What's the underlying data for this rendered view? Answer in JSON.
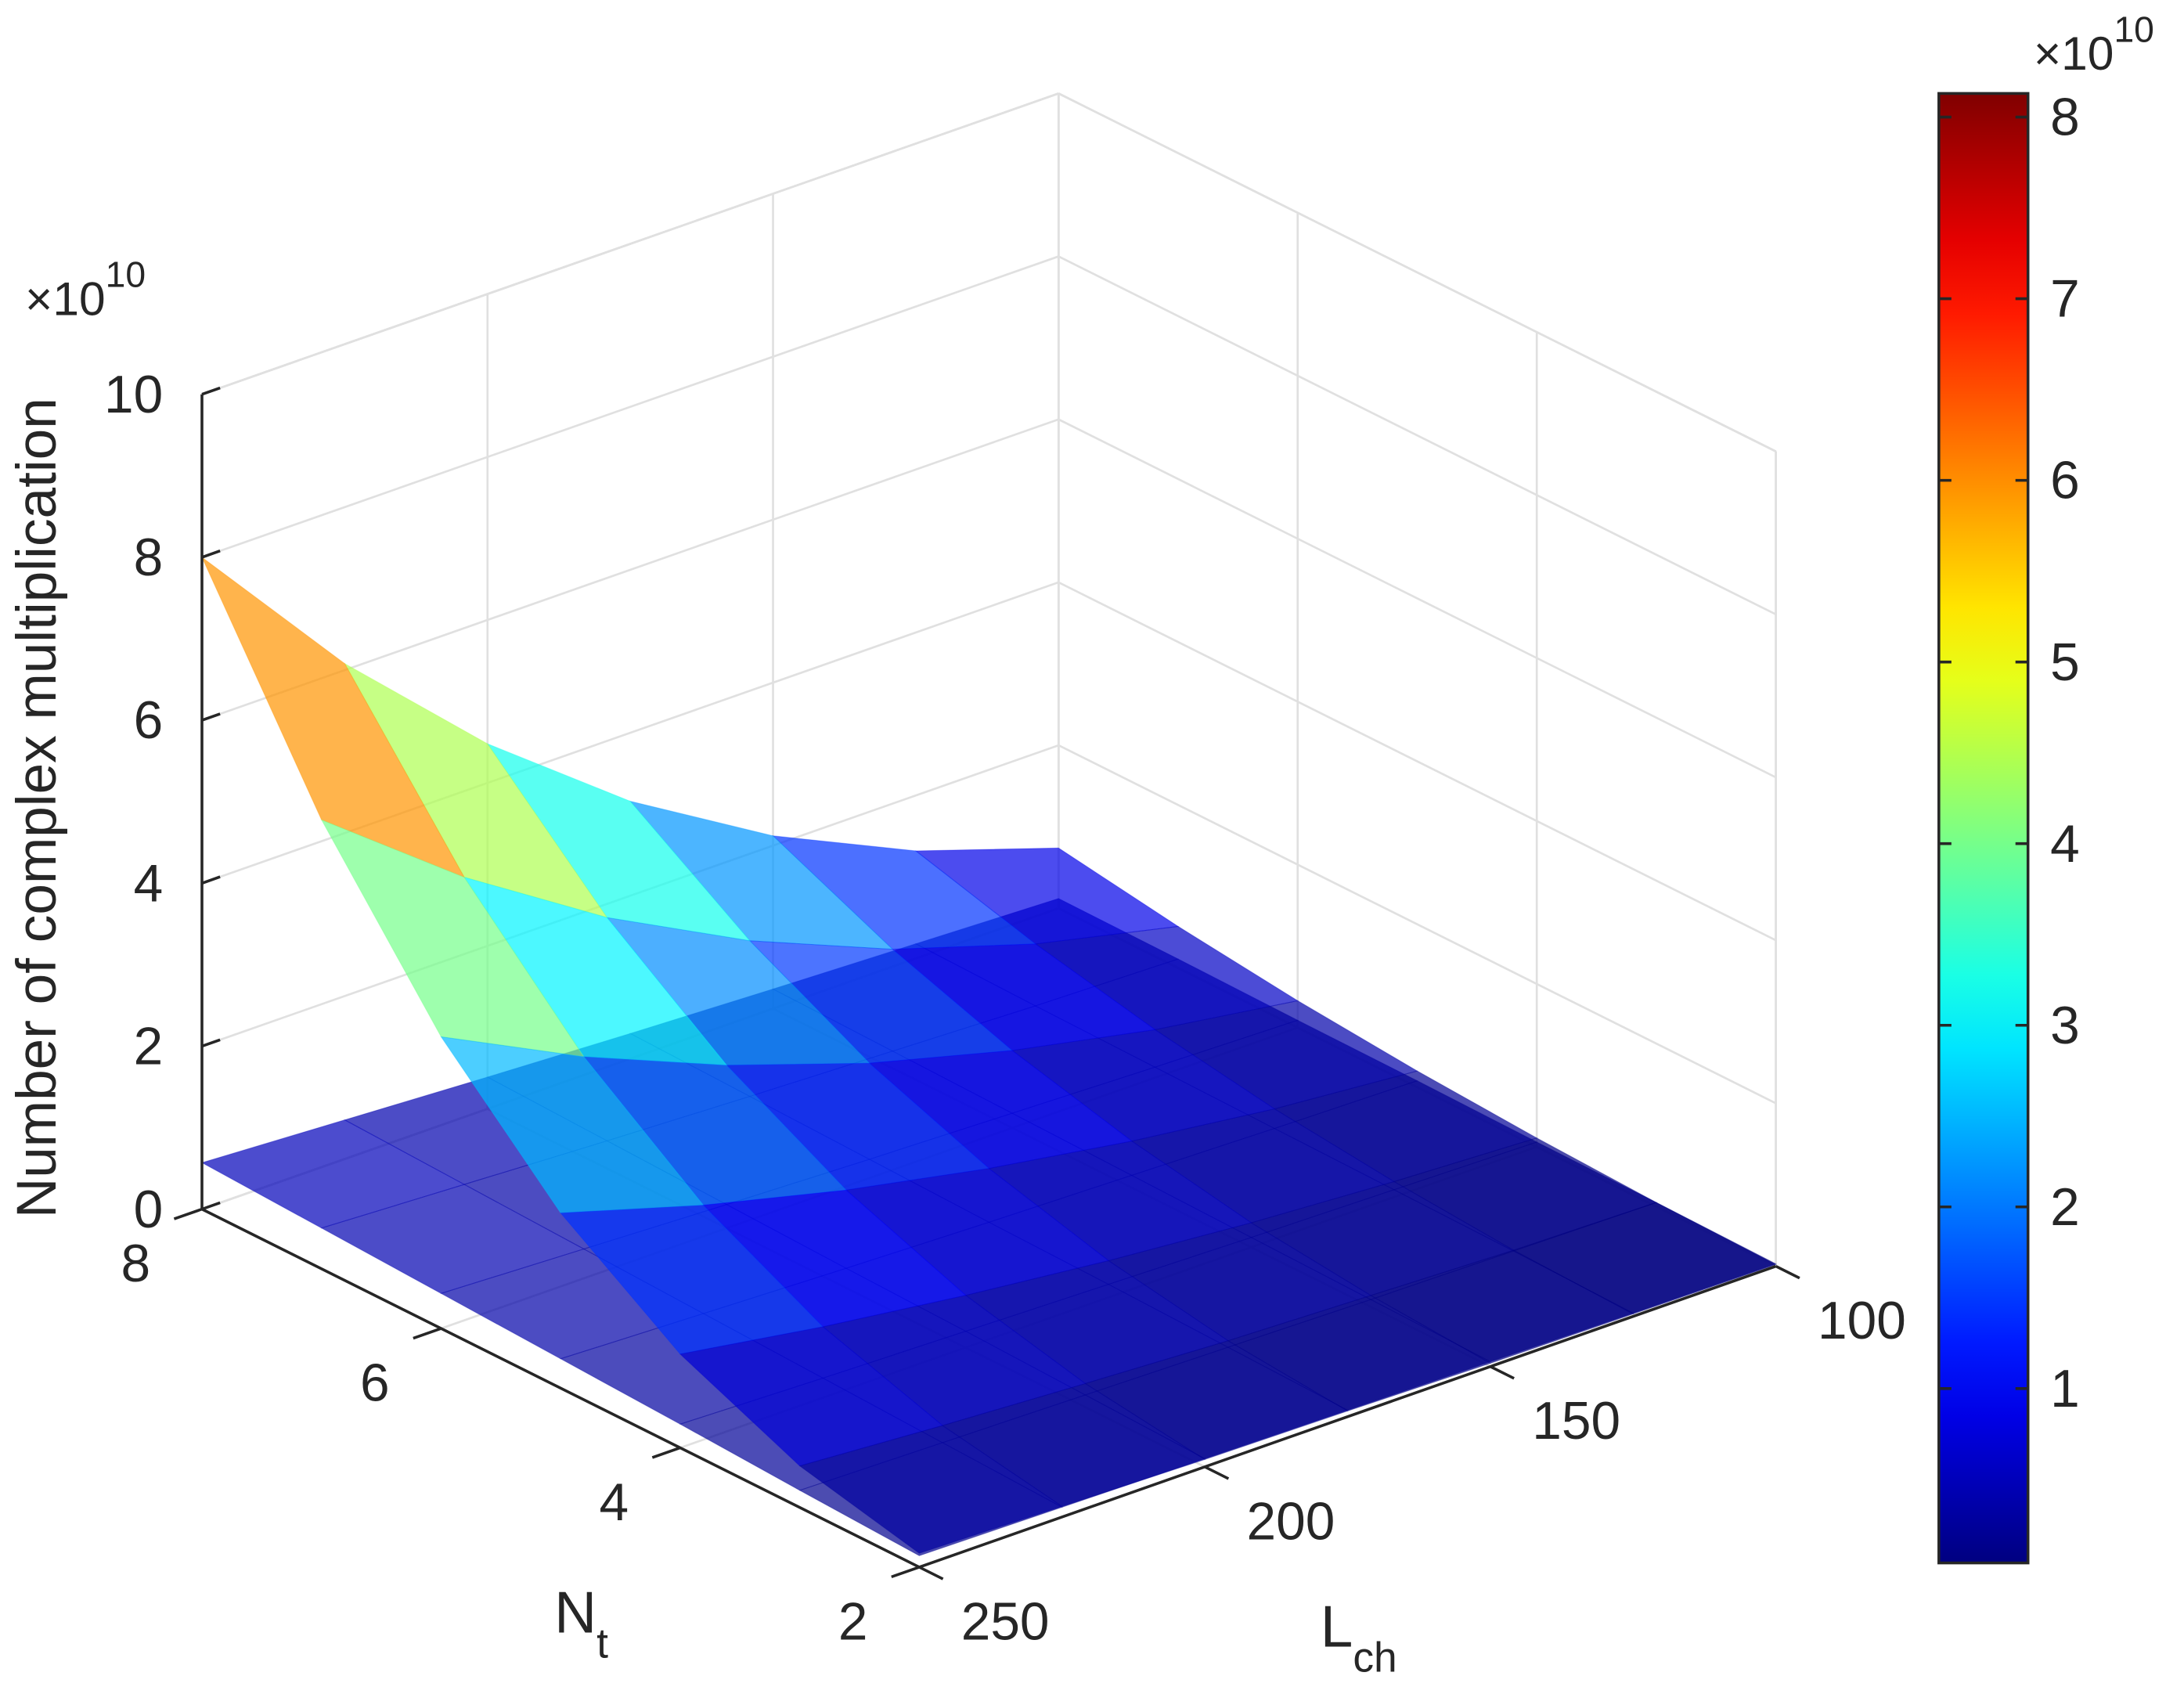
{
  "chart_data": {
    "type": "surface",
    "zlabel": "Number of complex multiplication",
    "zexponent": {
      "base": "×10",
      "power": "10"
    },
    "xlabel": {
      "main": "N",
      "sub": "t"
    },
    "ylabel": {
      "main": "L",
      "sub": "ch"
    },
    "x": [
      2,
      3,
      4,
      5,
      6,
      7,
      8
    ],
    "y": [
      100,
      125,
      150,
      175,
      200,
      225,
      250
    ],
    "series": [
      {
        "values": [
          [
            0.02,
            0.03,
            0.04,
            0.07,
            0.09,
            0.13,
            0.17
          ],
          [
            0.05,
            0.08,
            0.14,
            0.2,
            0.29,
            0.39,
            0.51
          ],
          [
            0.11,
            0.19,
            0.3,
            0.45,
            0.64,
            0.87,
            1.15
          ],
          [
            0.2,
            0.35,
            0.57,
            0.85,
            1.2,
            1.63,
            2.15
          ],
          [
            0.33,
            0.59,
            0.95,
            1.41,
            2.0,
            2.72,
            3.58
          ],
          [
            0.51,
            0.91,
            1.46,
            2.18,
            3.08,
            4.19,
            5.51
          ],
          [
            0.74,
            1.32,
            2.12,
            3.16,
            4.48,
            6.08,
            8
          ]
        ]
      },
      {
        "values": [
          [
            0.03,
            0.04,
            0.06,
            0.08,
            0.1,
            0.12,
            0.14
          ],
          [
            0.05,
            0.07,
            0.09,
            0.12,
            0.15,
            0.18,
            0.21
          ],
          [
            0.06,
            0.09,
            0.12,
            0.16,
            0.2,
            0.24,
            0.29
          ],
          [
            0.08,
            0.11,
            0.15,
            0.19,
            0.24,
            0.3,
            0.36
          ],
          [
            0.09,
            0.13,
            0.18,
            0.23,
            0.29,
            0.36,
            0.43
          ],
          [
            0.11,
            0.15,
            0.21,
            0.27,
            0.34,
            0.42,
            0.5
          ],
          [
            0.12,
            0.18,
            0.24,
            0.31,
            0.39,
            0.48,
            0.57
          ]
        ]
      }
    ],
    "xlim": [
      2,
      8
    ],
    "xticks": [
      2,
      4,
      6,
      8
    ],
    "ylim": [
      100,
      250
    ],
    "yticks": [
      100,
      150,
      200,
      250
    ],
    "zlim": [
      0,
      10
    ],
    "zticks": [
      0,
      2,
      4,
      6,
      8,
      10
    ],
    "grid": true,
    "colormap": "jet",
    "alpha": 0.7,
    "colorbar": {
      "clim": [
        0.04,
        8.13
      ],
      "ticks": [
        1,
        2,
        3,
        4,
        5,
        6,
        7,
        8
      ],
      "exponent": {
        "base": "×10",
        "power": "10"
      }
    }
  }
}
